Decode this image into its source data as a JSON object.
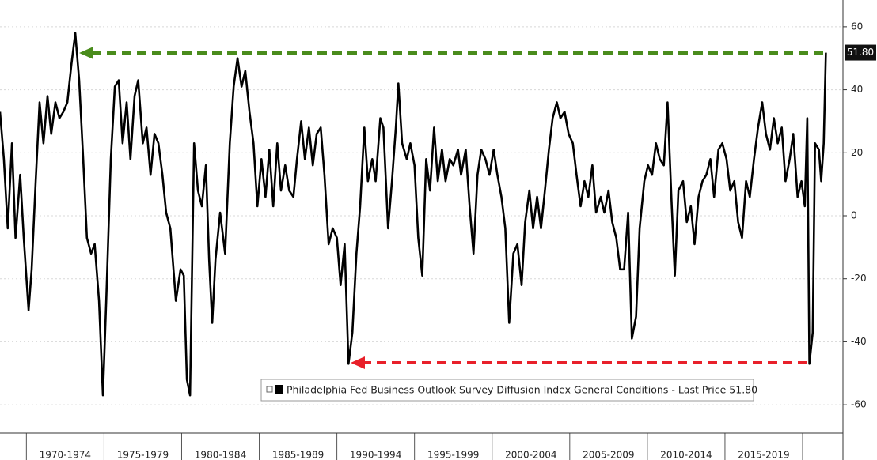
{
  "chart_data": {
    "type": "line",
    "x": [
      1968.3,
      1968.55,
      1968.8,
      1969.07,
      1969.3,
      1969.6,
      1969.83,
      1970.14,
      1970.34,
      1970.6,
      1970.85,
      1971.1,
      1971.36,
      1971.6,
      1971.87,
      1972.13,
      1972.38,
      1972.64,
      1972.9,
      1973.15,
      1973.4,
      1973.66,
      1973.9,
      1974.17,
      1974.4,
      1974.68,
      1974.93,
      1975.14,
      1975.44,
      1975.7,
      1975.95,
      1976.2,
      1976.46,
      1976.7,
      1976.97,
      1977.2,
      1977.5,
      1977.74,
      1978.0,
      1978.25,
      1978.5,
      1978.76,
      1979.0,
      1979.27,
      1979.63,
      1979.93,
      1980.14,
      1980.34,
      1980.54,
      1980.8,
      1981.05,
      1981.3,
      1981.56,
      1981.77,
      1981.97,
      1982.18,
      1982.48,
      1982.8,
      1983.1,
      1983.35,
      1983.6,
      1983.86,
      1984.1,
      1984.37,
      1984.63,
      1984.88,
      1985.14,
      1985.4,
      1985.65,
      1985.9,
      1986.16,
      1986.4,
      1986.67,
      1986.93,
      1987.2,
      1987.43,
      1987.7,
      1987.94,
      1988.2,
      1988.45,
      1988.7,
      1988.96,
      1989.2,
      1989.47,
      1989.73,
      1990.0,
      1990.24,
      1990.5,
      1990.75,
      1991.0,
      1991.26,
      1991.5,
      1991.77,
      1992.0,
      1992.28,
      1992.5,
      1992.8,
      1993.0,
      1993.3,
      1993.55,
      1993.8,
      1993.96,
      1994.2,
      1994.5,
      1994.73,
      1995.0,
      1995.24,
      1995.5,
      1995.75,
      1996.0,
      1996.26,
      1996.5,
      1996.77,
      1997.0,
      1997.27,
      1997.5,
      1997.8,
      1998.0,
      1998.3,
      1998.55,
      1998.8,
      1999.06,
      1999.3,
      1999.57,
      1999.83,
      2000.1,
      2000.34,
      2000.6,
      2000.85,
      2001.1,
      2001.37,
      2001.63,
      2001.9,
      2002.13,
      2002.4,
      2002.64,
      2002.9,
      2003.15,
      2003.4,
      2003.66,
      2003.9,
      2004.17,
      2004.4,
      2004.67,
      2004.93,
      2005.2,
      2005.44,
      2005.7,
      2005.95,
      2006.2,
      2006.46,
      2006.7,
      2007.0,
      2007.23,
      2007.5,
      2007.74,
      2008.0,
      2008.25,
      2008.5,
      2008.76,
      2009.0,
      2009.27,
      2009.5,
      2009.8,
      2010.04,
      2010.3,
      2010.55,
      2010.8,
      2011.06,
      2011.3,
      2011.57,
      2011.77,
      2012.0,
      2012.3,
      2012.54,
      2012.8,
      2013.04,
      2013.3,
      2013.55,
      2013.8,
      2014.06,
      2014.3,
      2014.58,
      2014.83,
      2015.1,
      2015.34,
      2015.6,
      2015.85,
      2016.1,
      2016.36,
      2016.6,
      2016.87,
      2017.13,
      2017.4,
      2017.64,
      2017.9,
      2018.15,
      2018.4,
      2018.66,
      2018.9,
      2019.17,
      2019.4,
      2019.68,
      2019.93,
      2020.14,
      2020.3,
      2020.44,
      2020.65,
      2020.8,
      2021.05,
      2021.2,
      2021.36,
      2021.5
    ],
    "series": [
      {
        "name": "Philadelphia Fed Business Outlook Survey Diffusion Index General Conditions - Last Price 51.80",
        "color": "#000000",
        "values": [
          33,
          18,
          -4,
          23,
          -7,
          13,
          -7,
          -30,
          -17,
          11,
          36,
          23,
          38,
          26,
          36,
          31,
          33,
          36,
          48,
          58,
          43,
          18,
          -7,
          -12,
          -9,
          -27,
          -57,
          -27,
          18,
          41,
          43,
          23,
          36,
          18,
          38,
          43,
          23,
          28,
          13,
          26,
          23,
          13,
          1,
          -4,
          -27,
          -17,
          -19,
          -52,
          -57,
          23,
          8,
          3,
          16,
          -14,
          -34,
          -14,
          1,
          -12,
          23,
          41,
          50,
          41,
          46,
          33,
          23,
          3,
          18,
          6,
          21,
          3,
          23,
          8,
          16,
          8,
          6,
          18,
          30,
          18,
          28,
          16,
          26,
          28,
          13,
          -9,
          -4,
          -7,
          -22,
          -9,
          -47,
          -37,
          -12,
          3,
          28,
          11,
          18,
          11,
          31,
          28,
          -4,
          11,
          28,
          42,
          23,
          18,
          23,
          16,
          -7,
          -19,
          18,
          8,
          28,
          11,
          21,
          11,
          18,
          16,
          21,
          13,
          21,
          3,
          -12,
          13,
          21,
          18,
          13,
          21,
          13,
          6,
          -4,
          -34,
          -12,
          -9,
          -22,
          -2,
          8,
          -4,
          6,
          -4,
          8,
          21,
          31,
          36,
          31,
          33,
          26,
          23,
          13,
          3,
          11,
          6,
          16,
          1,
          6,
          1,
          8,
          -2,
          -7,
          -17,
          -17,
          1,
          -39,
          -32,
          -4,
          11,
          16,
          13,
          23,
          18,
          16,
          36,
          3,
          -19,
          8,
          11,
          -2,
          3,
          -9,
          6,
          11,
          13,
          18,
          6,
          21,
          23,
          18,
          8,
          11,
          -2,
          -7,
          11,
          6,
          18,
          28,
          36,
          26,
          21,
          31,
          23,
          28,
          11,
          18,
          26,
          6,
          11,
          3,
          31,
          -47,
          -37,
          23,
          21,
          11,
          23,
          51.8
        ]
      }
    ],
    "last_price": {
      "value": 51.8,
      "label": "51.80"
    },
    "xlim": [
      1968.3,
      2022.6
    ],
    "xticks": [
      {
        "value": 1970,
        "label": "1970-1974"
      },
      {
        "value": 1975,
        "label": "1975-1979"
      },
      {
        "value": 1980,
        "label": "1980-1984"
      },
      {
        "value": 1985,
        "label": "1985-1989"
      },
      {
        "value": 1990,
        "label": "1990-1994"
      },
      {
        "value": 1995,
        "label": "1995-1999"
      },
      {
        "value": 2000,
        "label": "2000-2004"
      },
      {
        "value": 2005,
        "label": "2005-2009"
      },
      {
        "value": 2010,
        "label": "2010-2014"
      },
      {
        "value": 2015,
        "label": "2015-2019"
      },
      2020
    ],
    "ylim": [
      -69,
      68.5
    ],
    "yticks": [
      -60,
      -40,
      -20,
      0,
      20,
      40,
      60
    ],
    "grid": true
  }
}
